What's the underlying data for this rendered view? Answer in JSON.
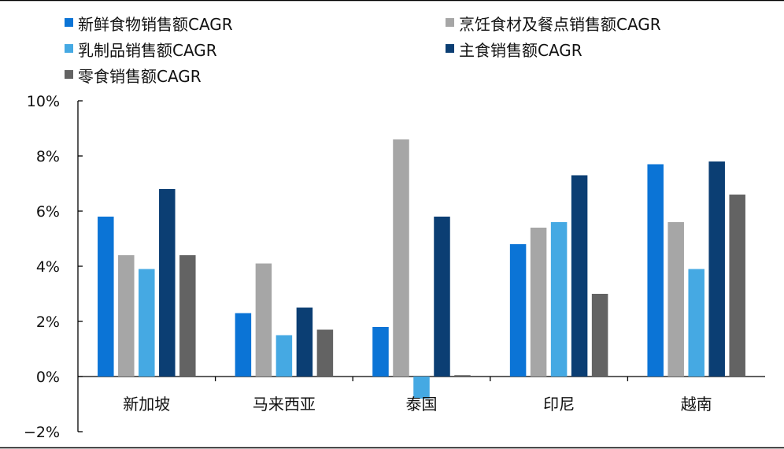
{
  "chart_data": {
    "type": "bar",
    "categories": [
      "新加坡",
      "马来西亚",
      "泰国",
      "印尼",
      "越南"
    ],
    "series": [
      {
        "name": "新鲜食物销售额CAGR",
        "color": "#0b74d6",
        "values": [
          5.8,
          2.3,
          1.8,
          4.8,
          7.7
        ]
      },
      {
        "name": "烹饪食材及餐点销售额CAGR",
        "color": "#a6a6a6",
        "values": [
          4.4,
          4.1,
          8.6,
          5.4,
          5.6
        ]
      },
      {
        "name": "乳制品销售额CAGR",
        "color": "#45a9e3",
        "values": [
          3.9,
          1.5,
          -0.8,
          5.6,
          3.9
        ]
      },
      {
        "name": "主食销售额CAGR",
        "color": "#0b3e73",
        "values": [
          6.8,
          2.5,
          5.8,
          7.3,
          7.8
        ]
      },
      {
        "name": "零食销售额CAGR",
        "color": "#636363",
        "values": [
          4.4,
          1.7,
          0.05,
          3.0,
          6.6
        ]
      }
    ],
    "yticks": [
      "10%",
      "8%",
      "6%",
      "4%",
      "2%",
      "0%",
      "−2%"
    ],
    "ylim": [
      -2,
      10
    ],
    "legend_position": "top"
  }
}
